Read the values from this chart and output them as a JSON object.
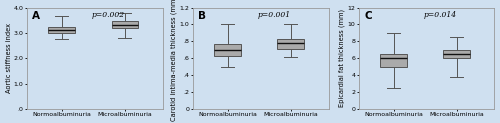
{
  "panels": [
    {
      "label": "A",
      "pvalue": "p=0.002",
      "ylabel": "Aortic stiffness index",
      "ylim": [
        0,
        4.0
      ],
      "yticks": [
        0.0,
        1.0,
        2.0,
        3.0,
        4.0
      ],
      "yticklabels": [
        ".0",
        "1.0",
        "2.0",
        "3.0",
        "4.0"
      ],
      "boxes": [
        {
          "whislo": 2.75,
          "q1": 3.0,
          "med": 3.1,
          "q3": 3.22,
          "whishi": 3.65
        },
        {
          "whislo": 2.8,
          "q1": 3.18,
          "med": 3.32,
          "q3": 3.48,
          "whishi": 3.78
        }
      ]
    },
    {
      "label": "B",
      "pvalue": "p=0.001",
      "ylabel": "Carotid intima-media thickness (mm)",
      "ylim": [
        0,
        1.2
      ],
      "yticks": [
        0,
        0.2,
        0.4,
        0.6,
        0.8,
        1.0,
        1.2
      ],
      "yticklabels": [
        "0",
        ".2",
        ".4",
        ".6",
        ".8",
        "1.0",
        "1.2"
      ],
      "boxes": [
        {
          "whislo": 0.5,
          "q1": 0.63,
          "med": 0.7,
          "q3": 0.77,
          "whishi": 1.0
        },
        {
          "whislo": 0.62,
          "q1": 0.71,
          "med": 0.78,
          "q3": 0.83,
          "whishi": 1.0
        }
      ]
    },
    {
      "label": "C",
      "pvalue": "p=0.014",
      "ylabel": "Epicardial fat thickness (mm)",
      "ylim": [
        0,
        12
      ],
      "yticks": [
        0,
        2,
        4,
        6,
        8,
        10,
        12
      ],
      "yticklabels": [
        "0",
        "2",
        "4",
        "6",
        "8",
        "10",
        "12"
      ],
      "boxes": [
        {
          "whislo": 2.5,
          "q1": 5.0,
          "med": 6.0,
          "q3": 6.5,
          "whishi": 9.0
        },
        {
          "whislo": 3.8,
          "q1": 6.0,
          "med": 6.5,
          "q3": 7.0,
          "whishi": 8.5
        }
      ]
    }
  ],
  "bg_color": "#cfe0f0",
  "box_facecolor": "#aaaaaa",
  "box_edgecolor": "#555555",
  "median_color": "#111111",
  "whisker_color": "#555555",
  "cap_color": "#555555",
  "xlabel_normo": "Normoalbuminuria",
  "xlabel_micro": "Microalbuminuria",
  "pvalue_fontsize": 5.5,
  "tick_fontsize": 4.5,
  "ylabel_fontsize": 4.8,
  "panel_label_fontsize": 7.5
}
